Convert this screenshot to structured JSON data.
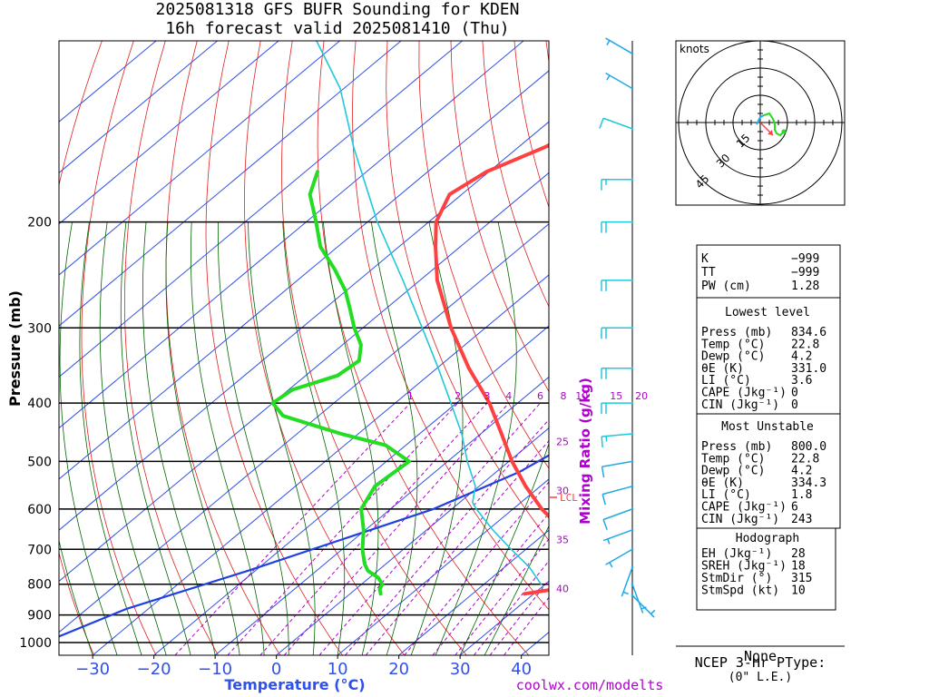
{
  "header": {
    "line1": "2025081318 GFS BUFR Sounding for KDEN",
    "line2": "16h forecast valid 2025081410 (Thu)"
  },
  "colors": {
    "temperature": "#ff4040",
    "dewpoint": "#22dd22",
    "parcel": "#20c8d8",
    "isotherm": "#3050e8",
    "dry_adiabat": "#e02020",
    "moist_adiabat": "#006400",
    "mixing_ratio": "#b000d0",
    "wind": "#20a8e8",
    "parcel_path": "#2040e0"
  },
  "chart_data": [
    {
      "type": "line",
      "subtype": "skew-T log-P sounding",
      "xlabel": "Temperature (°C)",
      "ylabel": "Pressure (mb)",
      "mixing_ratio_label": "Mixing Ratio (g/kg)",
      "x_ticks": [
        -30,
        -20,
        -10,
        0,
        10,
        20,
        30,
        40
      ],
      "x_tick_labels": [
        "−30",
        "−20",
        "−10",
        "0",
        "10",
        "20",
        "30",
        "40"
      ],
      "y_ticks": [
        200,
        300,
        400,
        500,
        600,
        700,
        800,
        900,
        1000
      ],
      "pressure_range_mb": [
        1050,
        100
      ],
      "temperature_range_at_1000mb_c": [
        -38,
        42
      ],
      "mixing_ratio_lines_g_kg": [
        1,
        2,
        3,
        4,
        6,
        8,
        10,
        15,
        20,
        25,
        30,
        35,
        40
      ],
      "lcl_label": "LCL",
      "lcl_pressure_mb": 585,
      "series": [
        {
          "key": "temperature",
          "points": [
            [
              830,
              28.5
            ],
            [
              815,
              32.5
            ],
            [
              800,
              36.2
            ],
            [
              780,
              37.2
            ],
            [
              760,
              35.5
            ],
            [
              740,
              32.8
            ],
            [
              700,
              28.4
            ],
            [
              650,
              22.2
            ],
            [
              600,
              14.7
            ],
            [
              550,
              7.6
            ],
            [
              500,
              0.5
            ],
            [
              450,
              -6.6
            ],
            [
              400,
              -14.6
            ],
            [
              350,
              -24.8
            ],
            [
              300,
              -35.6
            ],
            [
              250,
              -47.2
            ],
            [
              220,
              -54.0
            ],
            [
              200,
              -58.8
            ],
            [
              180,
              -62.0
            ],
            [
              165,
              -60.4
            ],
            [
              150,
              -55.6
            ],
            [
              135,
              -52.6
            ],
            [
              120,
              -51.6
            ],
            [
              110,
              -51.8
            ],
            [
              100,
              -50.2
            ]
          ]
        },
        {
          "key": "dewpoint",
          "points": [
            [
              830,
              5.0
            ],
            [
              815,
              3.9
            ],
            [
              800,
              3.4
            ],
            [
              780,
              1.4
            ],
            [
              760,
              -1.6
            ],
            [
              740,
              -3.5
            ],
            [
              700,
              -6.7
            ],
            [
              650,
              -10.3
            ],
            [
              600,
              -14.8
            ],
            [
              550,
              -17.0
            ],
            [
              500,
              -16.3
            ],
            [
              470,
              -23.3
            ],
            [
              450,
              -32.8
            ],
            [
              420,
              -45.8
            ],
            [
              400,
              -50.0
            ],
            [
              380,
              -49.4
            ],
            [
              360,
              -44.8
            ],
            [
              340,
              -44.2
            ],
            [
              320,
              -47.0
            ],
            [
              300,
              -51.4
            ],
            [
              280,
              -55.6
            ],
            [
              260,
              -60.2
            ],
            [
              240,
              -66.0
            ],
            [
              220,
              -72.8
            ],
            [
              200,
              -78.4
            ],
            [
              180,
              -84.8
            ],
            [
              165,
              -88.0
            ]
          ]
        },
        {
          "key": "parcel",
          "points": [
            [
              800,
              29.3
            ],
            [
              750,
              24.1
            ],
            [
              700,
              17.6
            ],
            [
              650,
              10.8
            ],
            [
              600,
              4.0
            ],
            [
              585,
              2.1
            ],
            [
              550,
              -0.6
            ],
            [
              500,
              -6.8
            ],
            [
              450,
              -13.1
            ],
            [
              400,
              -20.9
            ],
            [
              350,
              -29.8
            ],
            [
              300,
              -40.3
            ],
            [
              250,
              -52.8
            ],
            [
              200,
              -68.4
            ],
            [
              150,
              -87.0
            ],
            [
              120,
              -100.6
            ],
            [
              100,
              -113.8
            ]
          ]
        },
        {
          "key": "parcel_path",
          "points": [
            [
              1050,
              -43
            ],
            [
              880,
              -33.6
            ],
            [
              760,
              -21.2
            ],
            [
              600,
              -3.0
            ],
            [
              520,
              3.8
            ],
            [
              450,
              7.4
            ],
            [
              400,
              9.5
            ],
            [
              350,
              11.8
            ],
            [
              300,
              15.4
            ],
            [
              270,
              18.0
            ]
          ]
        }
      ],
      "wind_barbs": [
        {
          "pressure_mb": 835,
          "direction_deg": 135,
          "speed_kt": 5
        },
        {
          "pressure_mb": 800,
          "direction_deg": 160,
          "speed_kt": 5
        },
        {
          "pressure_mb": 750,
          "direction_deg": 200,
          "speed_kt": 5
        },
        {
          "pressure_mb": 700,
          "direction_deg": 240,
          "speed_kt": 5
        },
        {
          "pressure_mb": 650,
          "direction_deg": 250,
          "speed_kt": 5
        },
        {
          "pressure_mb": 600,
          "direction_deg": 250,
          "speed_kt": 10
        },
        {
          "pressure_mb": 550,
          "direction_deg": 255,
          "speed_kt": 10
        },
        {
          "pressure_mb": 500,
          "direction_deg": 260,
          "speed_kt": 10
        },
        {
          "pressure_mb": 450,
          "direction_deg": 265,
          "speed_kt": 15
        },
        {
          "pressure_mb": 400,
          "direction_deg": 270,
          "speed_kt": 20
        },
        {
          "pressure_mb": 350,
          "direction_deg": 270,
          "speed_kt": 20
        },
        {
          "pressure_mb": 300,
          "direction_deg": 270,
          "speed_kt": 20
        },
        {
          "pressure_mb": 250,
          "direction_deg": 270,
          "speed_kt": 20
        },
        {
          "pressure_mb": 200,
          "direction_deg": 270,
          "speed_kt": 20
        },
        {
          "pressure_mb": 170,
          "direction_deg": 270,
          "speed_kt": 15
        },
        {
          "pressure_mb": 140,
          "direction_deg": 290,
          "speed_kt": 10
        },
        {
          "pressure_mb": 120,
          "direction_deg": 300,
          "speed_kt": 5
        },
        {
          "pressure_mb": 105,
          "direction_deg": 300,
          "speed_kt": 5
        }
      ]
    },
    {
      "type": "line",
      "subtype": "hodograph",
      "units_label": "knots",
      "ring_labels": [
        "15",
        "30",
        "45"
      ],
      "ring_speeds_kt": [
        15,
        30,
        45
      ],
      "series": [
        {
          "key": "green",
          "points": [
            [
              2,
              4
            ],
            [
              5,
              5
            ],
            [
              7,
              2
            ],
            [
              8,
              -1
            ],
            [
              8,
              -4
            ],
            [
              9,
              -6
            ],
            [
              11,
              -7
            ],
            [
              13,
              -5
            ]
          ]
        },
        {
          "key": "blue",
          "points": [
            [
              -2,
              -1
            ],
            [
              0,
              3
            ],
            [
              2,
              4
            ]
          ]
        }
      ],
      "storm_motion": {
        "u": 7,
        "v": -7
      }
    }
  ],
  "indices": {
    "top": [
      {
        "label": "K",
        "value": "−999"
      },
      {
        "label": "TT",
        "value": "−999"
      },
      {
        "label": "PW (cm)",
        "value": "1.28"
      }
    ],
    "lowest": {
      "title": "Lowest level",
      "rows": [
        {
          "label": "Press (mb)",
          "value": "834.6"
        },
        {
          "label": "Temp (°C)",
          "value": "22.8"
        },
        {
          "label": "Dewp (°C)",
          "value": "4.2"
        },
        {
          "label": "θE (K)",
          "value": "331.0"
        },
        {
          "label": "LI (°C)",
          "value": "3.6"
        },
        {
          "label": "CAPE (Jkg⁻¹)",
          "value": "0"
        },
        {
          "label": "CIN (Jkg⁻¹)",
          "value": "0"
        }
      ]
    },
    "unstable": {
      "title": "Most Unstable",
      "rows": [
        {
          "label": "Press (mb)",
          "value": "800.0"
        },
        {
          "label": "Temp (°C)",
          "value": "22.8"
        },
        {
          "label": "Dewp (°C)",
          "value": "4.2"
        },
        {
          "label": "θE (K)",
          "value": "334.3"
        },
        {
          "label": "LI (°C)",
          "value": "1.8"
        },
        {
          "label": "CAPE (Jkg⁻¹)",
          "value": "6"
        },
        {
          "label": "CIN (Jkg⁻¹)",
          "value": "243"
        }
      ]
    },
    "hodograph": {
      "title": "Hodograph",
      "rows": [
        {
          "label": "EH (Jkg⁻¹)",
          "value": "28"
        },
        {
          "label": "SREH (Jkg⁻¹)",
          "value": "18"
        },
        {
          "label": "StmDir (°)",
          "value": "315"
        },
        {
          "label": "StmSpd (kt)",
          "value": "10"
        }
      ]
    }
  },
  "ptype": {
    "title": "NCEP 3-Hr PType:",
    "value": "None",
    "note": "(0\" L.E.)"
  },
  "footer": {
    "credit": "coolwx.com/modelts"
  }
}
